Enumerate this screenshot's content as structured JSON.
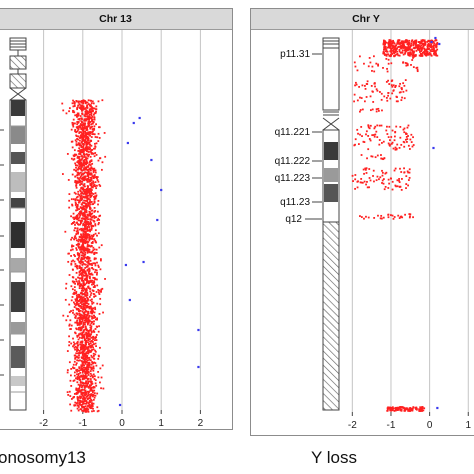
{
  "chart_data": [
    {
      "type": "scatter",
      "title": "Chr 13",
      "caption": "onosomy13",
      "xlim": [
        -2.5,
        2.5
      ],
      "xticks": [
        -2,
        -1,
        0,
        1,
        2
      ],
      "grid": true,
      "legend": "none",
      "colors": {
        "normal_points": "#ff2020",
        "outlier_points": "#3a3aee"
      },
      "band_labels": [],
      "point_density": {
        "center": -0.95,
        "spread": 0.3,
        "extent": "whole chromosome except short-arm stalk",
        "points": "~2600"
      },
      "outliers_x": [
        0.3,
        0.45,
        0.75,
        1.0,
        0.9,
        0.15,
        0.55,
        1.95,
        1.95,
        0.2,
        -0.05,
        0.1
      ]
    },
    {
      "type": "scatter",
      "title": "Chr Y",
      "caption": "Y loss",
      "xlim": [
        -2.5,
        1.2
      ],
      "xticks": [
        -2,
        -1,
        0,
        1
      ],
      "grid": true,
      "legend": "none",
      "colors": {
        "normal_points": "#ff2020",
        "outlier_points": "#3a3aee"
      },
      "band_labels": [
        "p11.31",
        "q11.221",
        "q11.222",
        "q11.223",
        "q11.23",
        "q12"
      ],
      "clusters": [
        {
          "x_center": -0.6,
          "spread": 0.4,
          "region": "p11.31 (dense)"
        },
        {
          "x_center": -1.7,
          "spread": 0.7,
          "region": "p11.31 sparse tail"
        },
        {
          "x_center": -1.5,
          "spread": 0.5,
          "region": "proximal Yp"
        },
        {
          "x_center": -1.2,
          "spread": 0.6,
          "region": "q11.221"
        },
        {
          "x_center": -1.5,
          "spread": 0.5,
          "region": "q11.223"
        },
        {
          "x_center": -1.2,
          "spread": 0.6,
          "region": "q12 boundary"
        },
        {
          "x_center": -0.7,
          "spread": 0.3,
          "region": "pseudoautosomal q end"
        }
      ],
      "outliers_x": [
        0.05,
        0.15,
        0.25,
        0.1,
        0.2
      ]
    }
  ]
}
